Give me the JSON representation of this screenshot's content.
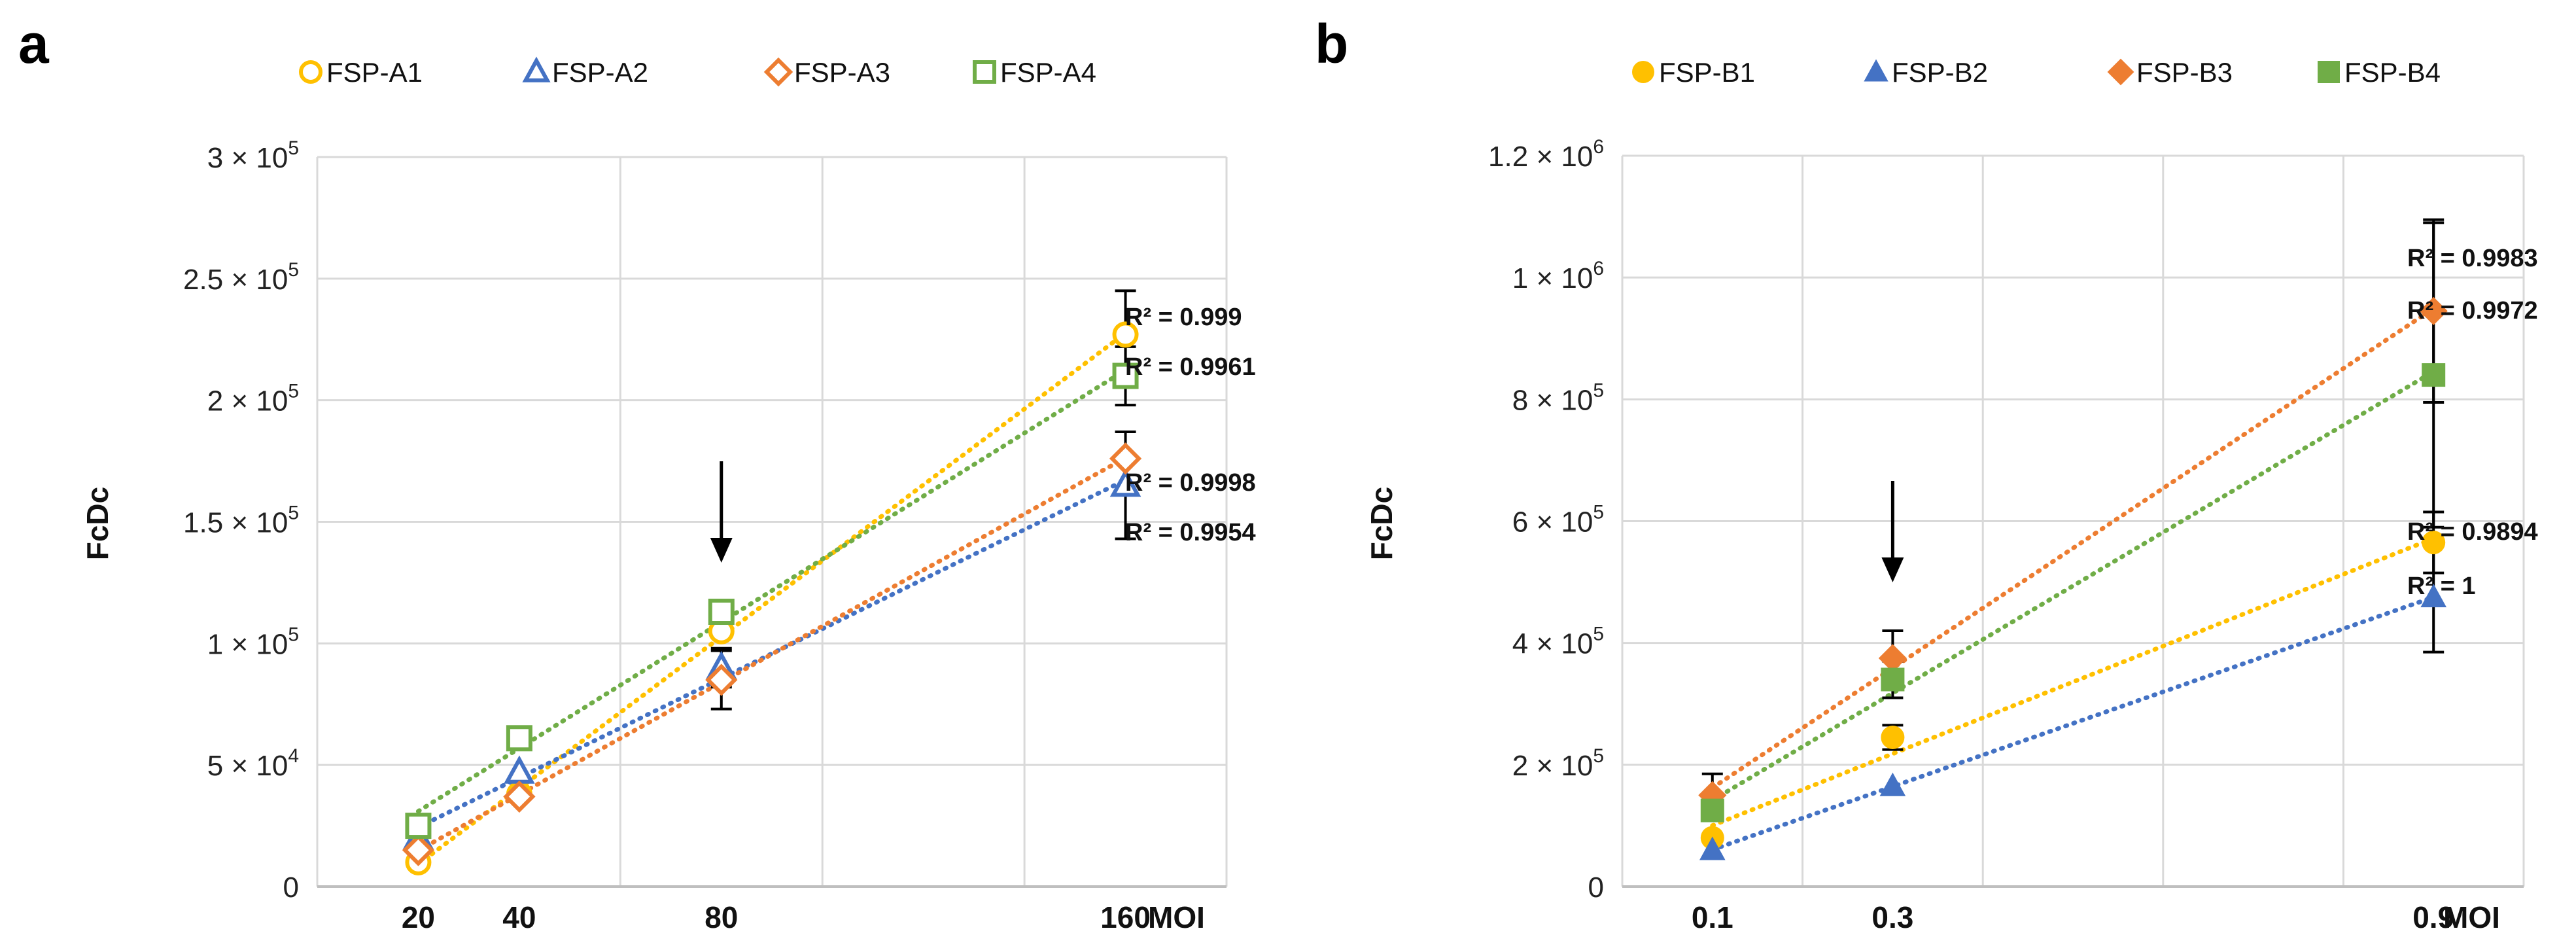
{
  "chart_data": [
    {
      "panel": "a",
      "type": "scatter",
      "xlabel": "MOI",
      "ylabel": "FcDc",
      "x": [
        20,
        40,
        80,
        160
      ],
      "xlim": [
        0,
        180
      ],
      "x_gridlines": [
        60,
        100,
        140,
        180
      ],
      "ylim": [
        0,
        300000
      ],
      "y_ticks": [
        0,
        50000,
        100000,
        150000,
        200000,
        250000,
        300000
      ],
      "y_tick_labels": [
        "0",
        "5 × 10",
        "1 × 10",
        "1.5 × 10",
        "2 × 10",
        "2.5 × 10",
        "3 × 10"
      ],
      "y_tick_exps": [
        "",
        "4",
        "5",
        "5",
        "5",
        "5",
        "5"
      ],
      "x_tick_labels": [
        "20",
        "40",
        "80",
        "160"
      ],
      "trendline": "linear, dotted",
      "marker_fill": "hollow",
      "annotation_arrow_x": 80,
      "series": [
        {
          "name": "FSP-A1",
          "marker": "circle",
          "color": "#FFC000",
          "values": [
            10000,
            38000,
            105000,
            227000
          ],
          "errors": [
            null,
            null,
            null,
            18000
          ],
          "r2": "R² = 0.999"
        },
        {
          "name": "FSP-A2",
          "marker": "triangle",
          "color": "#4472C4",
          "values": [
            20000,
            47000,
            90000,
            165000
          ],
          "errors": [
            null,
            null,
            8000,
            22000
          ],
          "r2": "R² = 0.9954"
        },
        {
          "name": "FSP-A3",
          "marker": "diamond",
          "color": "#ED7D31",
          "values": [
            15000,
            37000,
            85000,
            176000
          ],
          "errors": [
            null,
            null,
            12000,
            null
          ],
          "r2": "R² = 0.9998"
        },
        {
          "name": "FSP-A4",
          "marker": "square",
          "color": "#70AD47",
          "values": [
            25000,
            61000,
            113000,
            210000
          ],
          "errors": [
            null,
            null,
            null,
            12000
          ],
          "r2": "R² = 0.9961"
        }
      ]
    },
    {
      "panel": "b",
      "type": "scatter",
      "xlabel": "MOI",
      "ylabel": "FcDc",
      "x": [
        0.1,
        0.3,
        0.9
      ],
      "xlim": [
        0,
        1.0
      ],
      "x_gridlines": [
        0.2,
        0.4,
        0.6,
        0.8,
        1.0
      ],
      "ylim": [
        0,
        1200000
      ],
      "y_ticks": [
        0,
        200000,
        400000,
        600000,
        800000,
        1000000,
        1200000
      ],
      "y_tick_labels": [
        "0",
        "2 × 10",
        "4 × 10",
        "6 × 10",
        "8 × 10",
        "1 × 10",
        "1.2 × 10"
      ],
      "y_tick_exps": [
        "",
        "5",
        "5",
        "5",
        "5",
        "6",
        "6"
      ],
      "x_tick_labels": [
        "0.1",
        "0.3",
        "0.9"
      ],
      "trendline": "linear, dotted",
      "marker_fill": "solid",
      "annotation_arrow_x": 0.3,
      "series": [
        {
          "name": "FSP-B1",
          "marker": "circle",
          "color": "#FFC000",
          "values": [
            80000,
            245000,
            565000
          ],
          "errors": [
            null,
            20000,
            50000
          ],
          "r2": "R² = 0.9894"
        },
        {
          "name": "FSP-B2",
          "marker": "triangle",
          "color": "#4472C4",
          "values": [
            60000,
            165000,
            475000
          ],
          "errors": [
            null,
            null,
            90000
          ],
          "r2": "R² = 1"
        },
        {
          "name": "FSP-B3",
          "marker": "diamond",
          "color": "#ED7D31",
          "values": [
            150000,
            375000,
            945000
          ],
          "errors": [
            35000,
            45000,
            150000
          ],
          "r2": "R² = 0.9983"
        },
        {
          "name": "FSP-B4",
          "marker": "square",
          "color": "#70AD47",
          "values": [
            125000,
            340000,
            840000
          ],
          "errors": [
            null,
            30000,
            250000
          ],
          "r2": "R² = 0.9972"
        }
      ]
    }
  ]
}
